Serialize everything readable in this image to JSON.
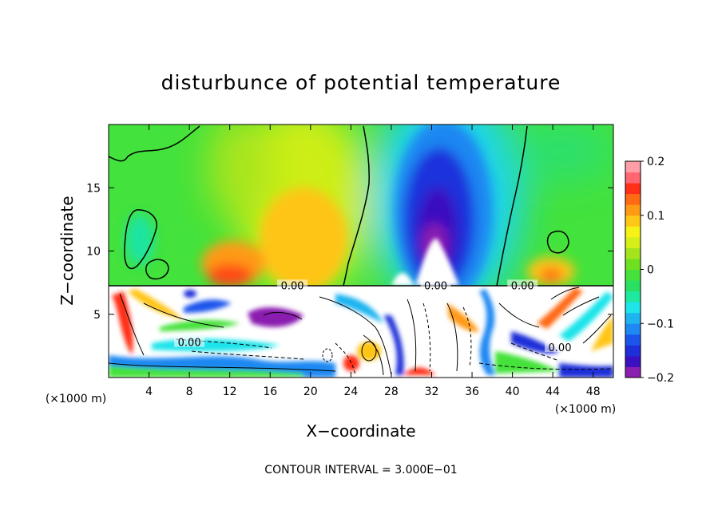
{
  "chart_data": {
    "type": "heatmap",
    "title": "disturbunce of potential temperature",
    "xlabel": "X−coordinate",
    "ylabel": "Z−coordinate",
    "x_unit_left": "(×1000 m)",
    "x_unit_right": "(×1000 m)",
    "xlim": [
      0,
      50
    ],
    "ylim": [
      0,
      20
    ],
    "xticks": [
      4,
      8,
      12,
      16,
      20,
      24,
      28,
      32,
      36,
      40,
      44,
      48
    ],
    "yticks": [
      5,
      10,
      15
    ],
    "colorbar": {
      "range": [
        -0.2,
        0.2
      ],
      "ticks": [
        0.2,
        0.1,
        0,
        -0.1,
        -0.2
      ],
      "tick_labels": [
        "0.2",
        "0.1",
        "0",
        "−0.1",
        "−0.2"
      ],
      "colors": [
        "#8b1fb0",
        "#3b10c0",
        "#1e2ed8",
        "#1c55ec",
        "#1f88f2",
        "#1fb4f0",
        "#1fe4ea",
        "#1fe8a0",
        "#29e060",
        "#44e23b",
        "#6ee01f",
        "#a5e41c",
        "#d6ee19",
        "#f6f216",
        "#ffc716",
        "#ff9a14",
        "#ff6a14",
        "#ff2f18",
        "#ff6672",
        "#ff9ea6"
      ]
    },
    "contour_labels": [
      {
        "x": 18.2,
        "y": 7.3,
        "text": "0.00"
      },
      {
        "x": 32.4,
        "y": 7.3,
        "text": "0.00"
      },
      {
        "x": 41.0,
        "y": 7.3,
        "text": "0.00"
      },
      {
        "x": 8.0,
        "y": 2.8,
        "text": "0.00"
      },
      {
        "x": 44.7,
        "y": 2.4,
        "text": "0.00"
      }
    ],
    "footer": "CONTOUR INTERVAL = 3.000E−01"
  }
}
